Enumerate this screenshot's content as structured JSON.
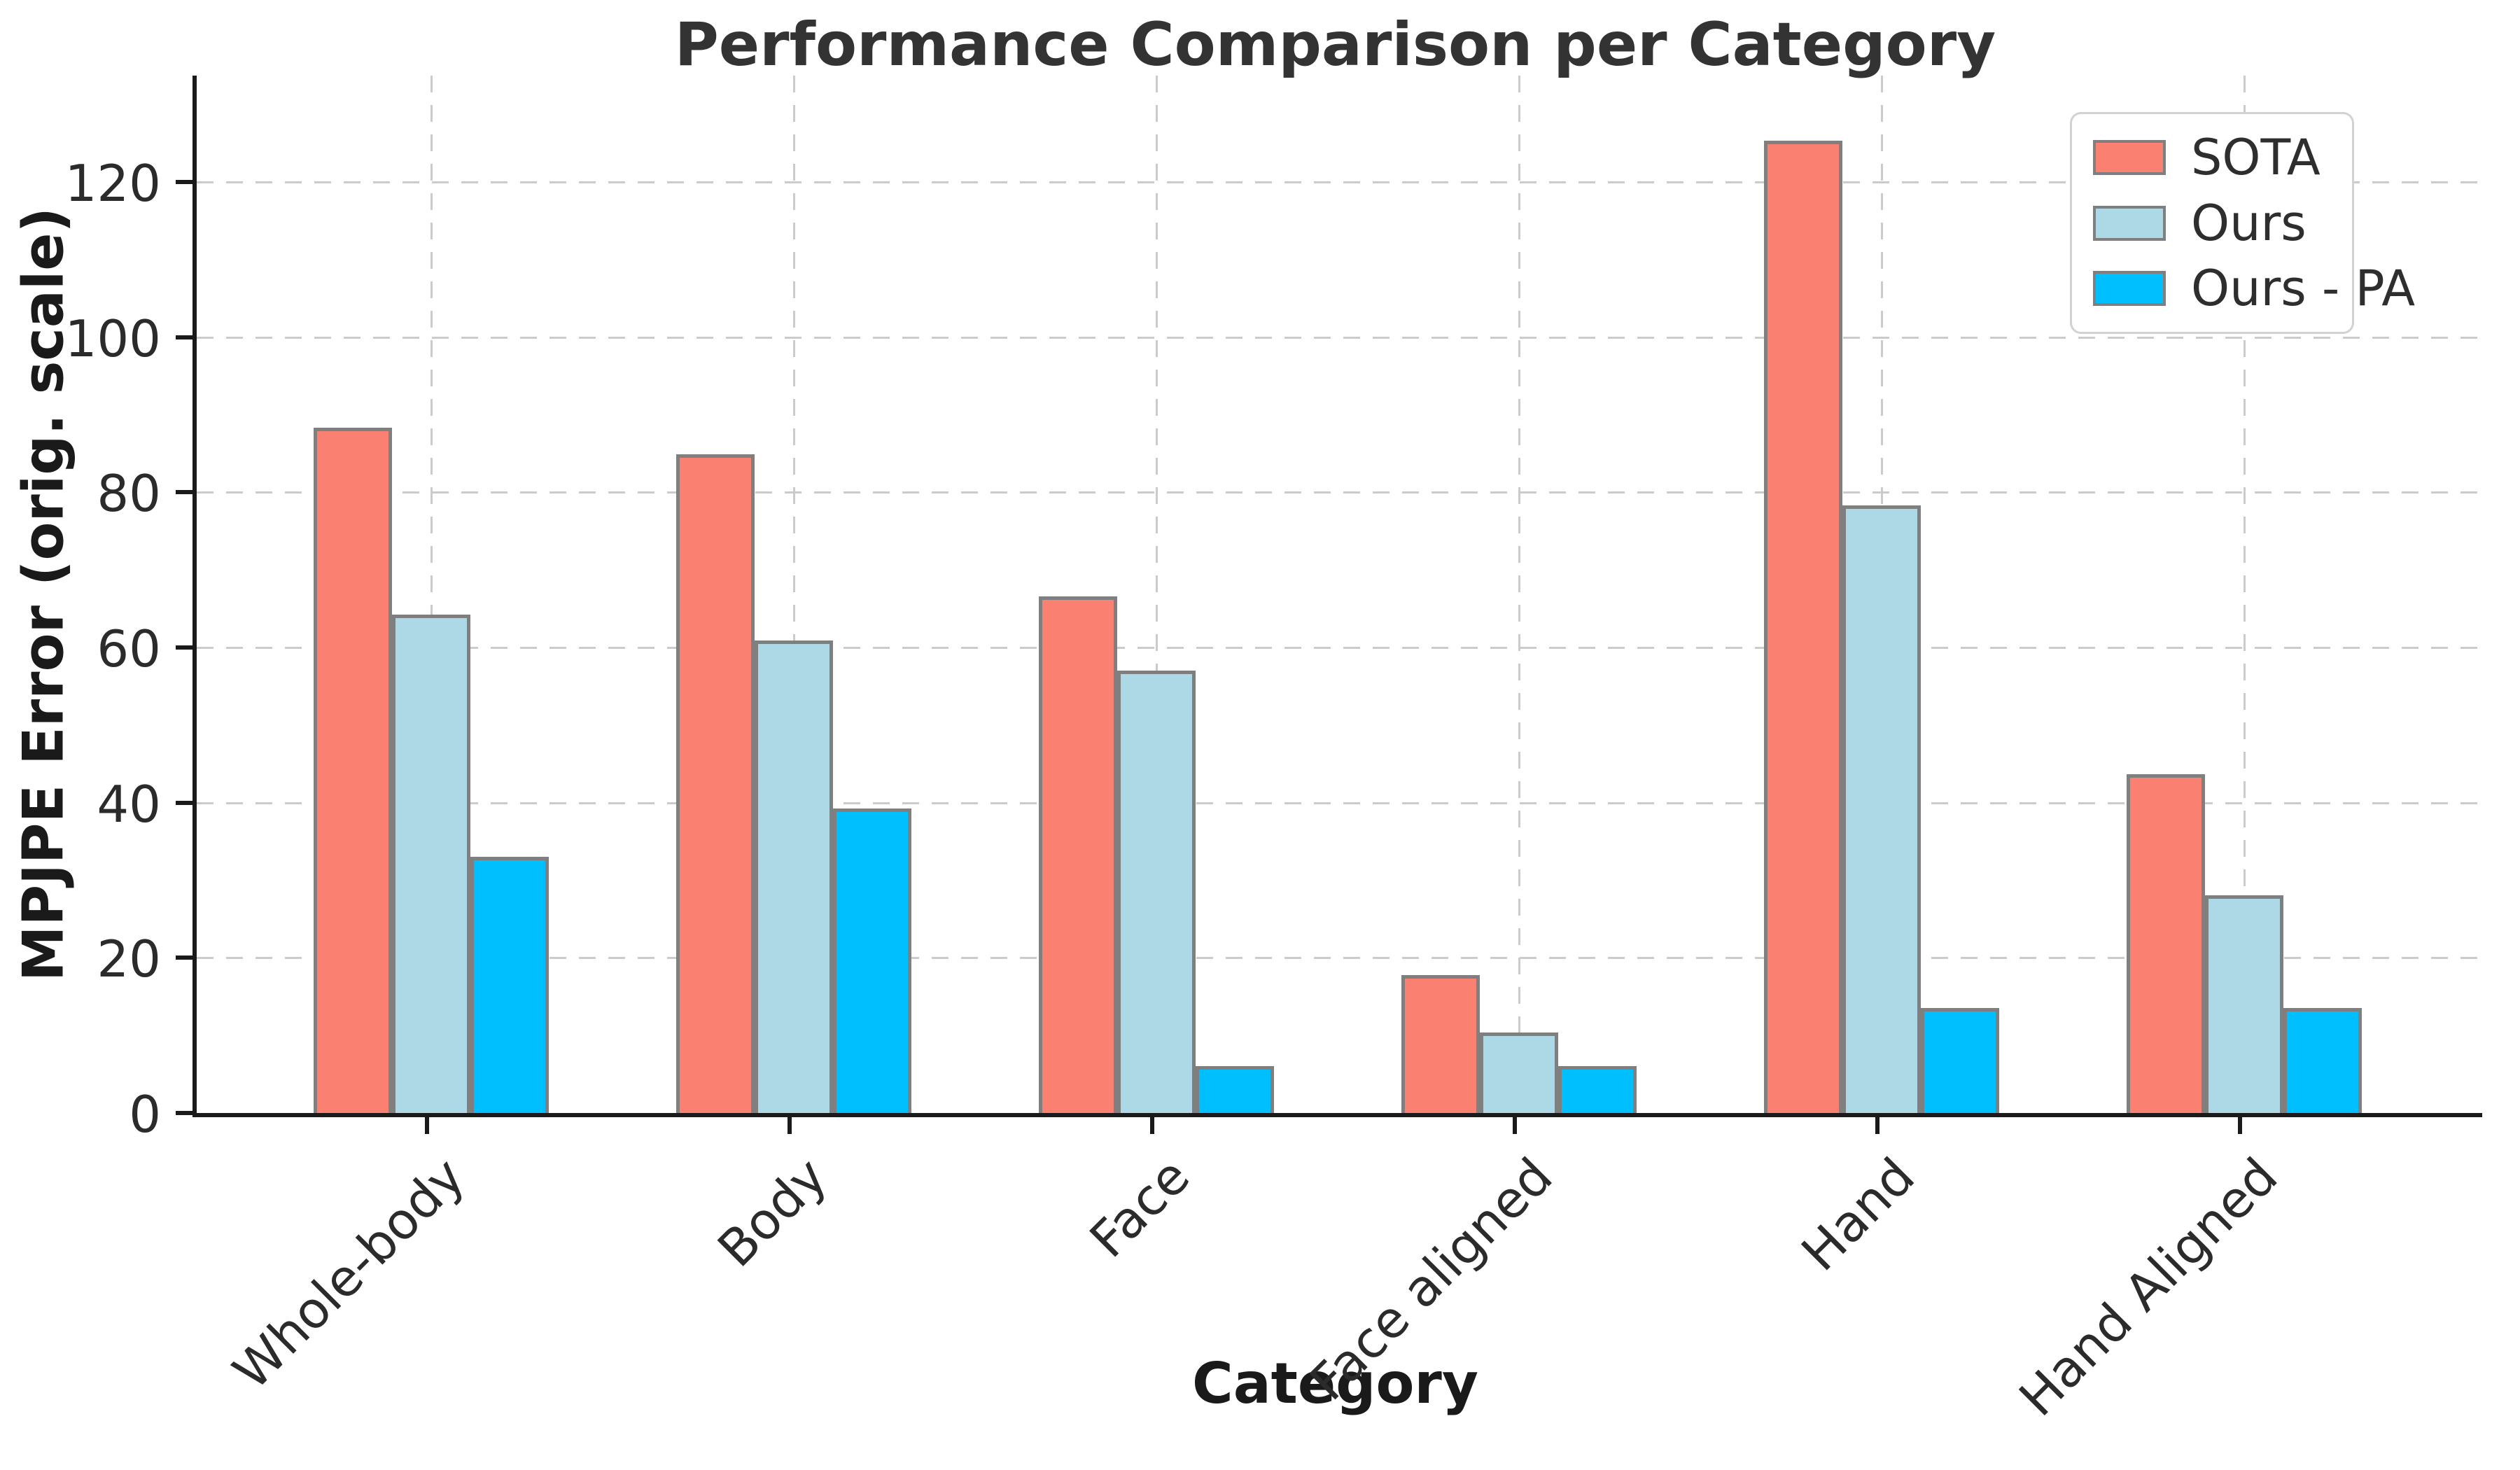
{
  "chart_data": {
    "type": "bar",
    "title": "Performance Comparison per Category",
    "xlabel": "Category",
    "ylabel": "MPJPE Error (orig. scale)",
    "categories": [
      "Whole-body",
      "Body",
      "Face",
      "Face aligned",
      "Hand",
      "Hand Aligned"
    ],
    "series": [
      {
        "name": "SOTA",
        "color": "#FA8072",
        "values": [
          88.3,
          84.9,
          66.6,
          17.8,
          125.3,
          43.7
        ]
      },
      {
        "name": "Ours",
        "color": "#ADD8E6",
        "values": [
          64.2,
          60.9,
          57.0,
          10.4,
          78.3,
          28.1
        ]
      },
      {
        "name": "Ours - PA",
        "color": "#00BFFF",
        "values": [
          33.0,
          39.2,
          6.0,
          6.0,
          13.5,
          13.5
        ]
      }
    ],
    "yticks": [
      0,
      20,
      40,
      60,
      80,
      100,
      120
    ],
    "ylim": [
      0,
      133.7
    ],
    "grid": true,
    "grid_color": "#cbcbcb",
    "bar_edge_color": "#7f7f7f",
    "axis_color": "#1a1a1a",
    "legend_position": "upper right",
    "x_tick_rotation_deg": 45
  }
}
